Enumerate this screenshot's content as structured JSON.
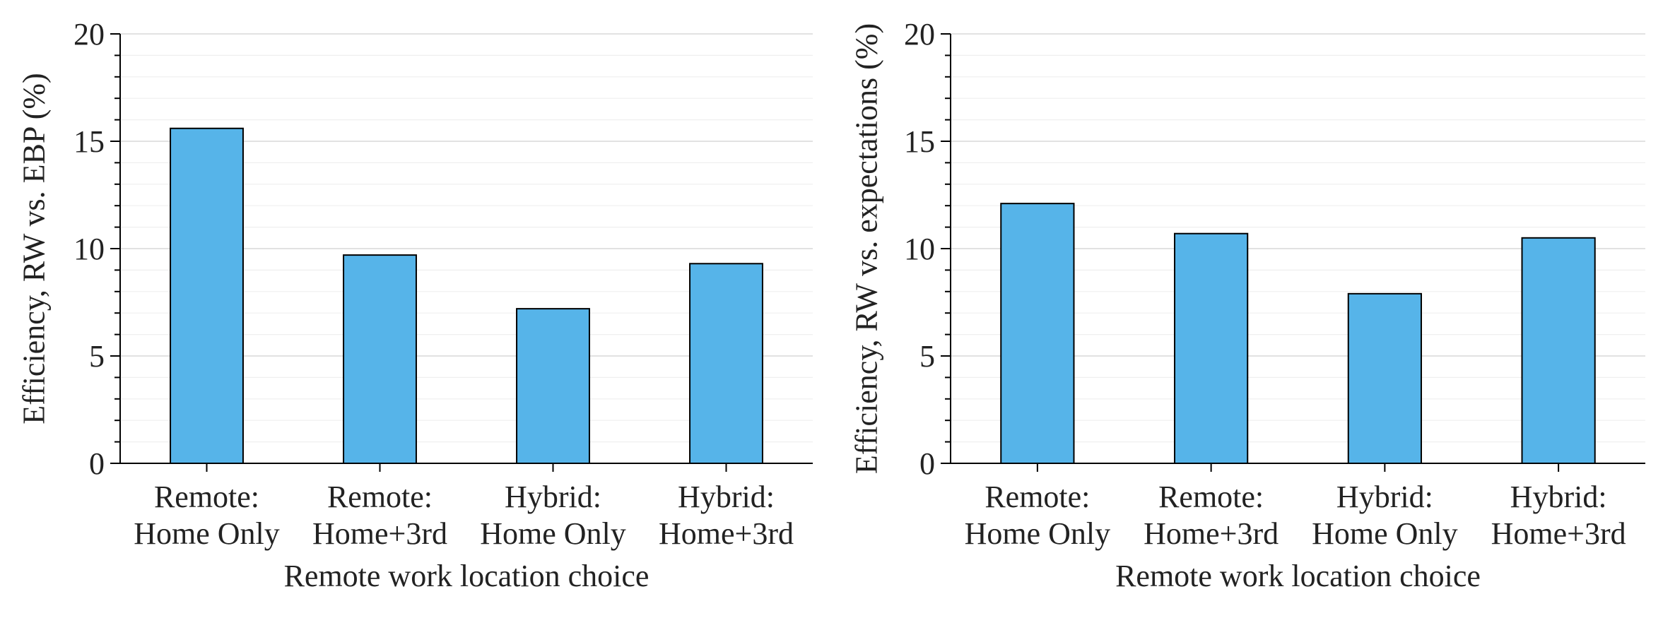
{
  "colors": {
    "bar_fill": "#56B4E9",
    "bar_stroke": "#000000",
    "axis": "#000000",
    "grid_major": "#d9d9d9",
    "grid_minor": "#efefef",
    "text": "#222222"
  },
  "chart_data": [
    {
      "type": "bar",
      "categories": [
        [
          "Remote:",
          "Home Only"
        ],
        [
          "Remote:",
          "Home+3rd"
        ],
        [
          "Hybrid:",
          "Home Only"
        ],
        [
          "Hybrid:",
          "Home+3rd"
        ]
      ],
      "values": [
        15.6,
        9.7,
        7.2,
        9.3
      ],
      "xlabel": "Remote work location choice",
      "ylabel": "Efficiency, RW vs. EBP (%)",
      "ylim": [
        0,
        20
      ],
      "yticks": [
        "0",
        "5",
        "10",
        "15",
        "20"
      ],
      "grid": "horizontal major and minor"
    },
    {
      "type": "bar",
      "categories": [
        [
          "Remote:",
          "Home Only"
        ],
        [
          "Remote:",
          "Home+3rd"
        ],
        [
          "Hybrid:",
          "Home Only"
        ],
        [
          "Hybrid:",
          "Home+3rd"
        ]
      ],
      "values": [
        12.1,
        10.7,
        7.9,
        10.5
      ],
      "xlabel": "Remote work location choice",
      "ylabel": "Efficiency, RW vs. expectations (%)",
      "ylim": [
        0,
        20
      ],
      "yticks": [
        "0",
        "5",
        "10",
        "15",
        "20"
      ],
      "grid": "horizontal major and minor"
    }
  ]
}
